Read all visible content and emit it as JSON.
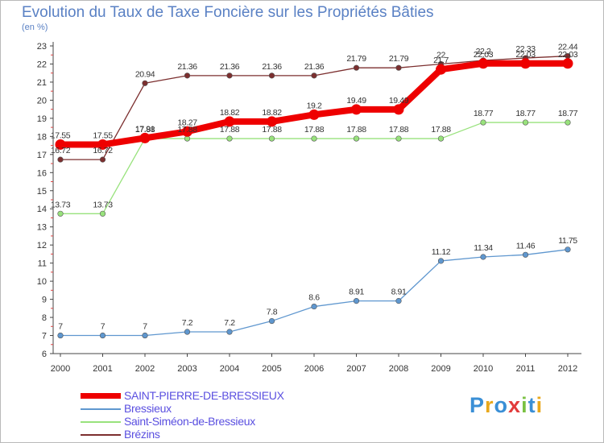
{
  "chart_data": {
    "type": "line",
    "title": "Evolution du Taux de Taxe Foncière sur les Propriétés Bâties",
    "unit_label": "(en %)",
    "ylim": [
      6,
      23
    ],
    "y_ticks": [
      "6",
      "7",
      "8",
      "9",
      "10",
      "11",
      "12",
      "13",
      "14",
      "15",
      "16",
      "17",
      "18",
      "19",
      "20",
      "21",
      "22",
      "23"
    ],
    "categories": [
      "2000",
      "2001",
      "2002",
      "2003",
      "2004",
      "2005",
      "2006",
      "2007",
      "2008",
      "2009",
      "2010",
      "2011",
      "2012"
    ],
    "series": [
      {
        "name": "SAINT-PIERRE-DE-BRESSIEUX",
        "color": "#ee0000",
        "values": [
          17.55,
          17.55,
          17.91,
          18.27,
          18.82,
          18.82,
          19.2,
          19.49,
          19.49,
          21.7,
          22.03,
          22.03,
          22.03
        ],
        "labels": [
          "17.55",
          "17.55",
          "17.91",
          "18.27",
          "18.82",
          "18.82",
          "19.2",
          "19.49",
          "19.49",
          "21.7",
          "22.03",
          "22.03",
          "22.03"
        ]
      },
      {
        "name": "Bressieux",
        "color": "#5f97cf",
        "values": [
          7,
          7,
          7,
          7.2,
          7.2,
          7.8,
          8.6,
          8.91,
          8.91,
          11.12,
          11.34,
          11.46,
          11.75
        ],
        "labels": [
          "7",
          "7",
          "7",
          "7.2",
          "7.2",
          "7.8",
          "8.6",
          "8.91",
          "8.91",
          "11.12",
          "11.34",
          "11.46",
          "11.75"
        ]
      },
      {
        "name": "Saint-Siméon-de-Bressieux",
        "color": "#98e27c",
        "values": [
          13.73,
          13.73,
          17.88,
          17.88,
          17.88,
          17.88,
          17.88,
          17.88,
          17.88,
          17.88,
          18.77,
          18.77,
          18.77
        ],
        "labels": [
          "13.73",
          "13.73",
          "17.88",
          "17.88",
          "17.88",
          "17.88",
          "17.88",
          "17.88",
          "17.88",
          "17.88",
          "18.77",
          "18.77",
          "18.77"
        ]
      },
      {
        "name": "Brézins",
        "color": "#7c2f2f",
        "values": [
          16.72,
          16.72,
          20.94,
          21.36,
          21.36,
          21.36,
          21.36,
          21.79,
          21.79,
          22,
          22.2,
          22.33,
          22.44
        ],
        "labels": [
          "16.72",
          "16.72",
          "20.94",
          "21.36",
          "21.36",
          "21.36",
          "21.36",
          "21.79",
          "21.79",
          "22",
          "22.2",
          "22.33",
          "22.44"
        ]
      }
    ],
    "legend_position": "bottom-left",
    "grid": false
  },
  "logo": {
    "letters": [
      "P",
      "r",
      "o",
      "x",
      "i",
      "t",
      "i"
    ],
    "colors": [
      "#3a8fd6",
      "#e8a81c",
      "#3a8fd6",
      "#e23b3b",
      "#7ac142",
      "#3a8fd6",
      "#e8a81c"
    ]
  }
}
